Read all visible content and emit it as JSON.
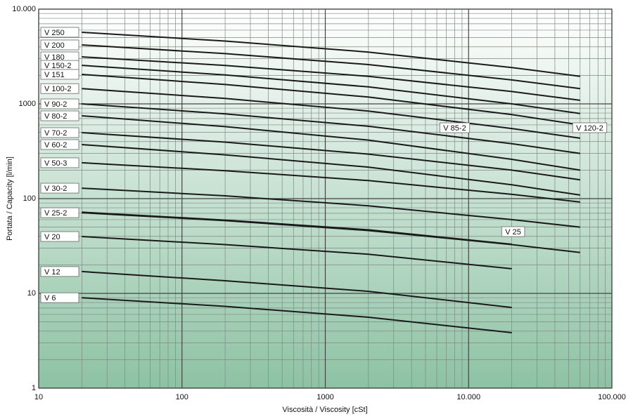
{
  "chart_data": {
    "type": "line",
    "x_label": "Viscosità / Viscosity [cSt]",
    "y_label": "Portata / Capacity [l/min]",
    "log_x": true,
    "log_y": true,
    "grid": true,
    "minor_grid": true,
    "xlim": [
      10,
      100000
    ],
    "xticks": [
      10,
      100,
      1000,
      {
        "value": 10000,
        "label": "10.000"
      },
      {
        "value": 100000,
        "label": "100.000"
      }
    ],
    "ylim": [
      1,
      10000
    ],
    "yticks": [
      1,
      10,
      100,
      1000,
      {
        "value": 10000,
        "label": "10.000"
      }
    ],
    "color": "#1a1a1a",
    "series": [
      {
        "name": "V 250",
        "x": [
          20,
          200,
          2000,
          20000,
          60000
        ],
        "values": [
          5700,
          4600,
          3520,
          2420,
          1950
        ]
      },
      {
        "name": "V 200",
        "x": [
          20,
          200,
          2000,
          20000,
          60000
        ],
        "values": [
          4190,
          3390,
          2600,
          1790,
          1450
        ]
      },
      {
        "name": "V 180",
        "x": [
          20,
          200,
          2000,
          20000,
          60000
        ],
        "values": [
          3135,
          2540,
          1950,
          1350,
          1090
        ]
      },
      {
        "name": "V 150-2",
        "x": [
          20,
          200,
          2000,
          20000,
          60000
        ],
        "values": [
          2550,
          2020,
          1510,
          1000,
          790
        ]
      },
      {
        "name": "V 151",
        "x": [
          20,
          200,
          2000,
          20000,
          60000
        ],
        "values": [
          2048,
          1600,
          1180,
          770,
          600
        ]
      },
      {
        "name": "V 100-2",
        "x": [
          20,
          200,
          2000,
          20000,
          60000
        ],
        "values": [
          1450,
          1140,
          840,
          550,
          434
        ]
      },
      {
        "name": "V 90-2",
        "x": [
          20,
          200,
          2000,
          20000,
          60000
        ],
        "values": [
          1000,
          785,
          580,
          380,
          300
        ]
      },
      {
        "name": "V 80-2",
        "x": [
          20,
          200,
          2000,
          20000,
          60000
        ],
        "values": [
          748,
          575,
          415,
          260,
          200
        ]
      },
      {
        "name": "V 70-2",
        "x": [
          20,
          200,
          2000,
          20000,
          60000
        ],
        "values": [
          497,
          395,
          295,
          200,
          158
        ]
      },
      {
        "name": "V 60-2",
        "x": [
          20,
          200,
          2000,
          20000,
          60000
        ],
        "values": [
          372,
          290,
          215,
          140,
          109
        ]
      },
      {
        "name": "V 50-3",
        "x": [
          20,
          200,
          2000,
          20000,
          60000
        ],
        "values": [
          239,
          197,
          155,
          111,
          92
        ]
      },
      {
        "name": "V 30-2",
        "x": [
          20,
          200,
          2000,
          20000,
          60000
        ],
        "values": [
          129,
          107,
          84,
          60,
          50
        ]
      },
      {
        "name": "V 25-2",
        "x": [
          20,
          200,
          2000,
          20000,
          60000
        ],
        "values": [
          71,
          58.5,
          46,
          32.7,
          27
        ]
      },
      {
        "name": "V 25",
        "label": "end",
        "x": [
          20,
          200,
          2000,
          20000
        ],
        "values": [
          72,
          59.3,
          46.9,
          33
        ]
      },
      {
        "name": "V 20",
        "x": [
          20,
          200,
          2000,
          20000
        ],
        "values": [
          39.8,
          32.7,
          25.9,
          18.2
        ]
      },
      {
        "name": "V 12",
        "x": [
          20,
          200,
          2000,
          20000
        ],
        "values": [
          17,
          13.6,
          10.5,
          7.1
        ]
      },
      {
        "name": "V 6",
        "x": [
          20,
          200,
          2000,
          20000
        ],
        "values": [
          9,
          7.3,
          5.6,
          3.85
        ]
      }
    ],
    "annotations": [
      {
        "text": "V 85-2",
        "x": 8000,
        "y": 560
      },
      {
        "text": "V 120-2",
        "x": 70000,
        "y": 560
      }
    ]
  }
}
